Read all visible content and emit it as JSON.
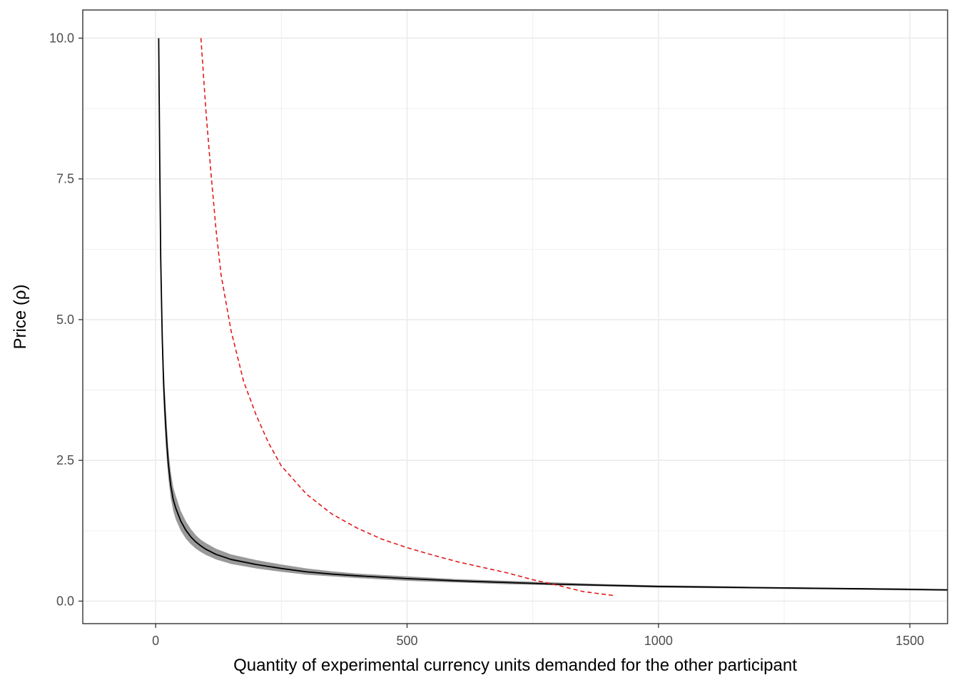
{
  "chart_data": {
    "type": "line",
    "title": "",
    "xlabel": "Quantity of experimental currency units demanded for the other participant",
    "ylabel": "Price (ρ)",
    "xlim": [
      -145,
      1575
    ],
    "ylim": [
      -0.4,
      10.5
    ],
    "xticks": [
      0,
      500,
      1000,
      1500
    ],
    "xtick_labels": [
      "0",
      "500",
      "1000",
      "1500"
    ],
    "yticks": [
      0,
      2.5,
      5,
      7.5,
      10
    ],
    "ytick_labels": [
      "0.0",
      "2.5",
      "5.0",
      "7.5",
      "10.0"
    ],
    "grid": true,
    "legend": "none",
    "series": [
      {
        "style": "solid",
        "color": "#000000",
        "ribbon_color": "#999999",
        "x": [
          6,
          8,
          10,
          13,
          16,
          20,
          25,
          30,
          35,
          40,
          50,
          60,
          70,
          80,
          90,
          100,
          120,
          150,
          200,
          250,
          300,
          350,
          400,
          500,
          600,
          700,
          800,
          900,
          1000,
          1100,
          1200,
          1300,
          1400,
          1500,
          1575
        ],
        "y": [
          10.0,
          7.9,
          6.1,
          4.7,
          3.8,
          3.1,
          2.45,
          2.05,
          1.8,
          1.65,
          1.42,
          1.26,
          1.14,
          1.05,
          0.98,
          0.92,
          0.83,
          0.74,
          0.65,
          0.58,
          0.52,
          0.48,
          0.45,
          0.4,
          0.36,
          0.33,
          0.3,
          0.28,
          0.26,
          0.25,
          0.24,
          0.23,
          0.22,
          0.21,
          0.2
        ],
        "lower": [
          10.0,
          7.6,
          5.7,
          4.3,
          3.45,
          2.75,
          2.2,
          1.83,
          1.6,
          1.45,
          1.25,
          1.11,
          1.01,
          0.93,
          0.87,
          0.82,
          0.74,
          0.66,
          0.58,
          0.52,
          0.47,
          0.44,
          0.41,
          0.36,
          0.33,
          0.3,
          0.28,
          0.26,
          0.24,
          0.23,
          0.22,
          0.21,
          0.2,
          0.19,
          0.18
        ],
        "upper": [
          10.0,
          8.2,
          6.5,
          5.1,
          4.15,
          3.45,
          2.72,
          2.3,
          2.02,
          1.87,
          1.6,
          1.42,
          1.28,
          1.17,
          1.09,
          1.03,
          0.93,
          0.83,
          0.73,
          0.65,
          0.58,
          0.53,
          0.49,
          0.44,
          0.39,
          0.36,
          0.33,
          0.3,
          0.28,
          0.27,
          0.25,
          0.24,
          0.23,
          0.22,
          0.21
        ]
      },
      {
        "style": "dashed",
        "color": "#e31a1c",
        "x": [
          90,
          100,
          110,
          120,
          130,
          150,
          175,
          200,
          225,
          250,
          300,
          350,
          400,
          450,
          500,
          550,
          600,
          650,
          700,
          750,
          800,
          850,
          910
        ],
        "y": [
          10.0,
          8.7,
          7.6,
          6.6,
          5.8,
          4.8,
          3.9,
          3.3,
          2.8,
          2.4,
          1.9,
          1.55,
          1.3,
          1.1,
          0.95,
          0.82,
          0.7,
          0.6,
          0.5,
          0.38,
          0.28,
          0.17,
          0.1
        ]
      }
    ]
  }
}
